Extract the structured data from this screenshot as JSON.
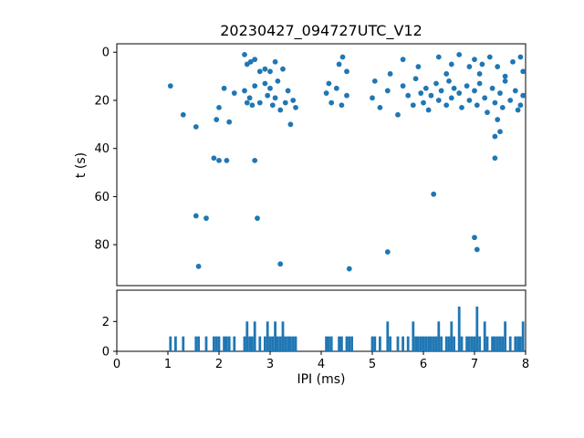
{
  "chart_data": [
    {
      "type": "scatter",
      "title": "20230427_094727UTC_V12",
      "xlabel": "",
      "ylabel": "t (s)",
      "xlim": [
        0,
        8
      ],
      "ylim": [
        -3.5,
        97
      ],
      "y_inverted": true,
      "xticks": [
        0,
        1,
        2,
        3,
        4,
        5,
        6,
        7,
        8
      ],
      "yticks": [
        0,
        20,
        40,
        60,
        80
      ],
      "grid": false,
      "marker_color": "#1f77b4",
      "points": [
        [
          2.5,
          1
        ],
        [
          2.55,
          5
        ],
        [
          2.62,
          4
        ],
        [
          2.7,
          3
        ],
        [
          2.8,
          8
        ],
        [
          2.9,
          7
        ],
        [
          3.0,
          8
        ],
        [
          3.1,
          4
        ],
        [
          3.25,
          7
        ],
        [
          4.35,
          5
        ],
        [
          4.42,
          2
        ],
        [
          4.5,
          8
        ],
        [
          5.35,
          9
        ],
        [
          5.6,
          3
        ],
        [
          5.9,
          6
        ],
        [
          6.3,
          2
        ],
        [
          6.45,
          9
        ],
        [
          6.55,
          5
        ],
        [
          6.7,
          1
        ],
        [
          6.9,
          6
        ],
        [
          7.0,
          3
        ],
        [
          7.1,
          9
        ],
        [
          7.15,
          5
        ],
        [
          7.3,
          2
        ],
        [
          7.45,
          6
        ],
        [
          7.6,
          10
        ],
        [
          7.75,
          4
        ],
        [
          7.9,
          2
        ],
        [
          7.95,
          8
        ],
        [
          1.05,
          14
        ],
        [
          1.3,
          26
        ],
        [
          1.55,
          31
        ],
        [
          1.95,
          28
        ],
        [
          2.0,
          23
        ],
        [
          2.1,
          15
        ],
        [
          2.2,
          29
        ],
        [
          2.3,
          17
        ],
        [
          2.5,
          16
        ],
        [
          2.55,
          21
        ],
        [
          2.6,
          19
        ],
        [
          2.65,
          22
        ],
        [
          2.7,
          14
        ],
        [
          2.8,
          21
        ],
        [
          2.9,
          13
        ],
        [
          2.95,
          18
        ],
        [
          3.0,
          15
        ],
        [
          3.05,
          22
        ],
        [
          3.1,
          19
        ],
        [
          3.15,
          12
        ],
        [
          3.2,
          24
        ],
        [
          3.3,
          21
        ],
        [
          3.35,
          16
        ],
        [
          3.45,
          20
        ],
        [
          3.5,
          23
        ],
        [
          4.1,
          17
        ],
        [
          4.15,
          13
        ],
        [
          4.2,
          21
        ],
        [
          4.3,
          15
        ],
        [
          4.4,
          22
        ],
        [
          4.5,
          18
        ],
        [
          5.0,
          19
        ],
        [
          5.05,
          12
        ],
        [
          5.15,
          23
        ],
        [
          5.3,
          16
        ],
        [
          5.5,
          26
        ],
        [
          5.6,
          14
        ],
        [
          5.7,
          18
        ],
        [
          5.8,
          22
        ],
        [
          5.85,
          11
        ],
        [
          5.95,
          17
        ],
        [
          6.0,
          21
        ],
        [
          6.05,
          15
        ],
        [
          6.1,
          24
        ],
        [
          6.15,
          18
        ],
        [
          6.25,
          13
        ],
        [
          6.3,
          20
        ],
        [
          6.35,
          16
        ],
        [
          6.45,
          22
        ],
        [
          6.5,
          12
        ],
        [
          6.55,
          19
        ],
        [
          6.6,
          15
        ],
        [
          6.7,
          17
        ],
        [
          6.75,
          23
        ],
        [
          6.85,
          14
        ],
        [
          6.9,
          20
        ],
        [
          7.0,
          16
        ],
        [
          7.05,
          22
        ],
        [
          7.1,
          13
        ],
        [
          7.2,
          19
        ],
        [
          7.25,
          25
        ],
        [
          7.35,
          15
        ],
        [
          7.4,
          21
        ],
        [
          7.5,
          17
        ],
        [
          7.55,
          23
        ],
        [
          7.6,
          12
        ],
        [
          7.7,
          20
        ],
        [
          7.8,
          16
        ],
        [
          7.85,
          24
        ],
        [
          7.9,
          22
        ],
        [
          7.95,
          18
        ],
        [
          3.4,
          30
        ],
        [
          7.45,
          28
        ],
        [
          7.5,
          33
        ],
        [
          7.4,
          35
        ],
        [
          1.9,
          44
        ],
        [
          2.0,
          45
        ],
        [
          2.15,
          45
        ],
        [
          2.7,
          45
        ],
        [
          7.4,
          44
        ],
        [
          6.2,
          59
        ],
        [
          1.55,
          68
        ],
        [
          1.75,
          69
        ],
        [
          2.75,
          69
        ],
        [
          7.0,
          77
        ],
        [
          7.05,
          82
        ],
        [
          5.3,
          83
        ],
        [
          1.6,
          89
        ],
        [
          3.2,
          88
        ],
        [
          4.55,
          90
        ]
      ]
    },
    {
      "type": "bar",
      "title": "",
      "xlabel": "IPI (ms)",
      "ylabel": "",
      "xlim": [
        0,
        8
      ],
      "ylim": [
        0,
        4.1
      ],
      "xticks": [
        0,
        1,
        2,
        3,
        4,
        5,
        6,
        7,
        8
      ],
      "yticks": [
        0,
        2
      ],
      "grid": false,
      "bar_color": "#1f77b4",
      "bin_width": 0.05,
      "bars": [
        [
          1.05,
          1
        ],
        [
          1.15,
          1
        ],
        [
          1.3,
          1
        ],
        [
          1.55,
          1
        ],
        [
          1.6,
          1
        ],
        [
          1.75,
          1
        ],
        [
          1.9,
          1
        ],
        [
          1.95,
          1
        ],
        [
          2.0,
          1
        ],
        [
          2.1,
          1
        ],
        [
          2.15,
          1
        ],
        [
          2.2,
          1
        ],
        [
          2.3,
          1
        ],
        [
          2.5,
          1
        ],
        [
          2.55,
          2
        ],
        [
          2.6,
          1
        ],
        [
          2.65,
          1
        ],
        [
          2.7,
          2
        ],
        [
          2.8,
          1
        ],
        [
          2.9,
          1
        ],
        [
          2.95,
          2
        ],
        [
          3.0,
          1
        ],
        [
          3.05,
          1
        ],
        [
          3.1,
          2
        ],
        [
          3.15,
          1
        ],
        [
          3.2,
          1
        ],
        [
          3.25,
          2
        ],
        [
          3.3,
          1
        ],
        [
          3.35,
          1
        ],
        [
          3.4,
          1
        ],
        [
          3.45,
          1
        ],
        [
          3.5,
          1
        ],
        [
          4.1,
          1
        ],
        [
          4.15,
          1
        ],
        [
          4.2,
          1
        ],
        [
          4.35,
          1
        ],
        [
          4.4,
          1
        ],
        [
          4.5,
          1
        ],
        [
          4.55,
          1
        ],
        [
          4.6,
          1
        ],
        [
          5.0,
          1
        ],
        [
          5.05,
          1
        ],
        [
          5.15,
          1
        ],
        [
          5.3,
          2
        ],
        [
          5.35,
          1
        ],
        [
          5.5,
          1
        ],
        [
          5.6,
          1
        ],
        [
          5.7,
          1
        ],
        [
          5.8,
          2
        ],
        [
          5.85,
          1
        ],
        [
          5.9,
          1
        ],
        [
          5.95,
          1
        ],
        [
          6.0,
          1
        ],
        [
          6.05,
          1
        ],
        [
          6.1,
          1
        ],
        [
          6.15,
          1
        ],
        [
          6.2,
          1
        ],
        [
          6.25,
          1
        ],
        [
          6.3,
          2
        ],
        [
          6.35,
          1
        ],
        [
          6.45,
          1
        ],
        [
          6.5,
          1
        ],
        [
          6.55,
          2
        ],
        [
          6.6,
          1
        ],
        [
          6.7,
          3
        ],
        [
          6.75,
          1
        ],
        [
          6.85,
          1
        ],
        [
          6.9,
          1
        ],
        [
          6.95,
          1
        ],
        [
          7.0,
          1
        ],
        [
          7.05,
          3
        ],
        [
          7.1,
          1
        ],
        [
          7.2,
          2
        ],
        [
          7.25,
          1
        ],
        [
          7.35,
          1
        ],
        [
          7.4,
          1
        ],
        [
          7.45,
          1
        ],
        [
          7.5,
          1
        ],
        [
          7.55,
          1
        ],
        [
          7.6,
          2
        ],
        [
          7.7,
          1
        ],
        [
          7.8,
          1
        ],
        [
          7.85,
          1
        ],
        [
          7.9,
          1
        ],
        [
          7.95,
          2
        ]
      ]
    }
  ],
  "figure": {
    "background": "#ffffff",
    "accent": "#1f77b4"
  }
}
